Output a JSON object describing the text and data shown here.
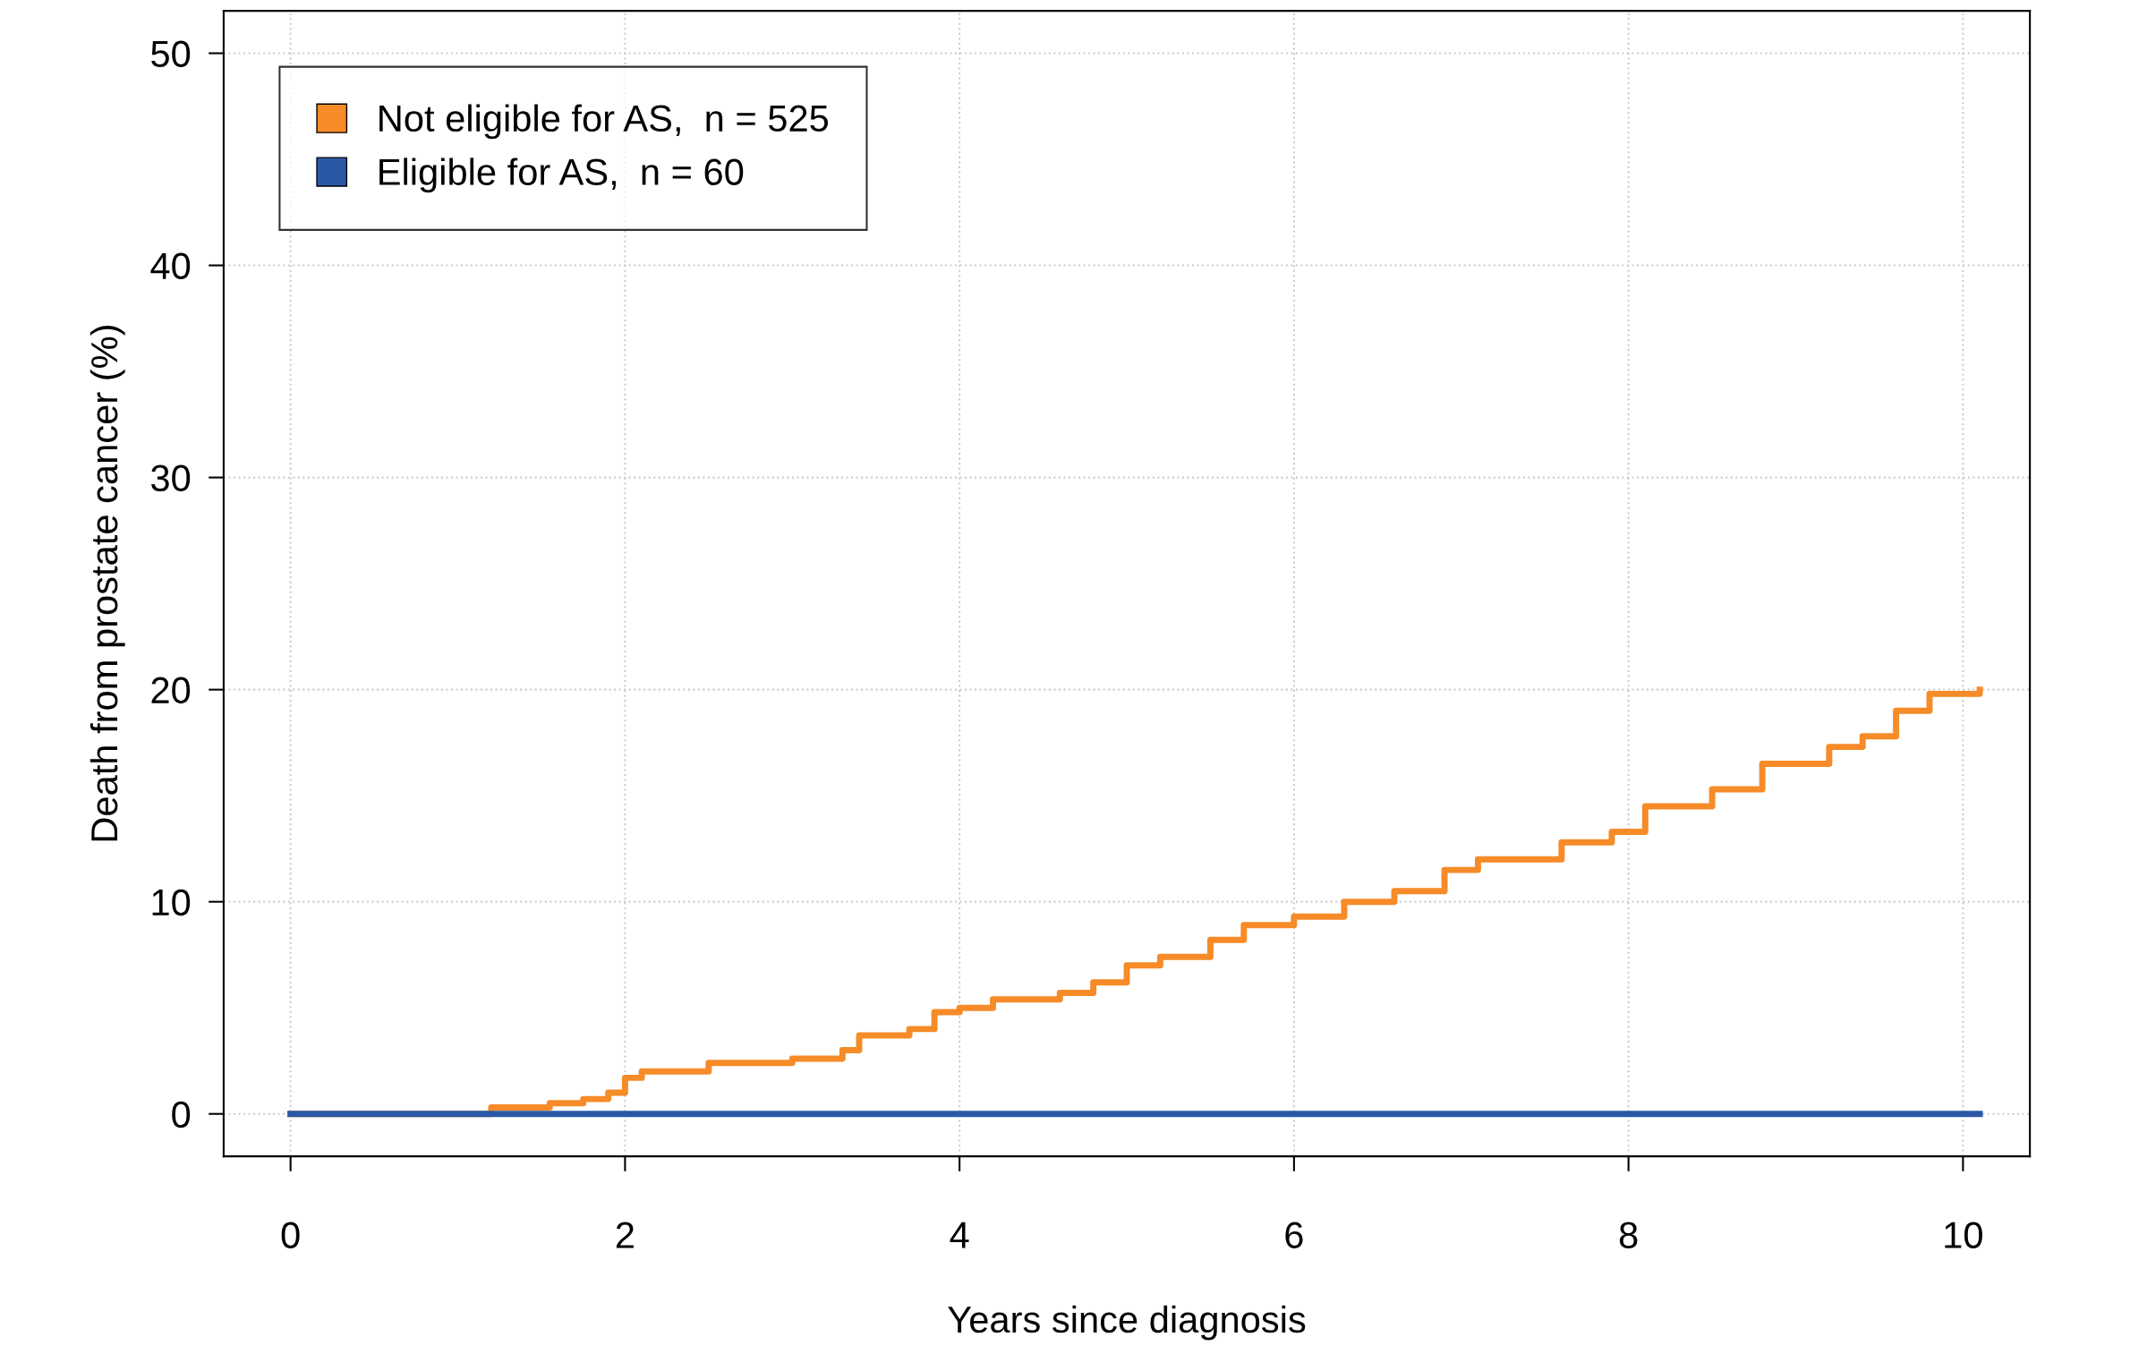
{
  "chart_data": {
    "type": "step",
    "xlabel": "Years since diagnosis",
    "ylabel": "Death from prostate cancer (%)",
    "xlim": [
      -0.4,
      10.4
    ],
    "ylim": [
      -2,
      52
    ],
    "xticks": [
      0,
      2,
      4,
      6,
      8,
      10
    ],
    "yticks": [
      0,
      10,
      20,
      30,
      40,
      50
    ],
    "grid": true,
    "legend": "top left",
    "line_style": "solid",
    "series": [
      {
        "name": "Not eligible for AS,  n = 525",
        "color": "#f68b28",
        "x": [
          0,
          1.15,
          1.2,
          1.55,
          1.75,
          1.9,
          2.0,
          2.1,
          2.5,
          3.0,
          3.3,
          3.4,
          3.7,
          3.85,
          4.0,
          4.2,
          4.6,
          4.8,
          5.0,
          5.2,
          5.5,
          5.7,
          6.0,
          6.3,
          6.6,
          6.9,
          7.1,
          7.6,
          7.9,
          8.1,
          8.5,
          8.8,
          9.2,
          9.4,
          9.6,
          9.8,
          10.1
        ],
        "values": [
          0,
          0,
          0.3,
          0.5,
          0.7,
          1.0,
          1.7,
          2.0,
          2.4,
          2.6,
          3.0,
          3.7,
          4.0,
          4.8,
          5.0,
          5.4,
          5.7,
          6.2,
          7.0,
          7.4,
          8.2,
          8.9,
          9.3,
          10.0,
          10.5,
          11.5,
          12.0,
          12.8,
          13.3,
          14.5,
          15.3,
          16.5,
          17.3,
          17.8,
          19.0,
          19.8,
          20.0
        ]
      },
      {
        "name": "Eligible for AS,  n = 60",
        "color": "#2b58a6",
        "x": [
          0,
          10.1
        ],
        "values": [
          0,
          0
        ]
      }
    ]
  }
}
